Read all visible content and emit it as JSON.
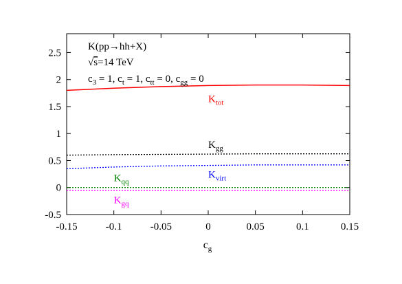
{
  "chart_data": {
    "type": "line",
    "xlabel": "c",
    "xlabel_sub": "g",
    "xlim": [
      -0.15,
      0.15
    ],
    "ylim": [
      -0.5,
      2.85
    ],
    "x_ticks": [
      -0.15,
      -0.1,
      -0.05,
      0,
      0.05,
      0.1,
      0.15
    ],
    "x_tick_labels": [
      "-0.15",
      "-0.1",
      "-0.05",
      "0",
      "0.05",
      "0.1",
      "0.15"
    ],
    "y_ticks": [
      -0.5,
      0,
      0.5,
      1,
      1.5,
      2,
      2.5
    ],
    "y_tick_labels": [
      "-0.5",
      "0",
      "0.5",
      "1",
      "1.5",
      "2",
      "2.5"
    ],
    "grid": false,
    "annotations": {
      "process": "K(pp→hh+X)",
      "energy_sqrt": "√",
      "energy": "s=14 TeV",
      "couplings": [
        {
          "base": "c",
          "sub": "3",
          "rest": " = 1, "
        },
        {
          "base": "c",
          "sub": "t",
          "rest": " = 1, "
        },
        {
          "base": "c",
          "sub": "tt",
          "rest": " = 0, "
        },
        {
          "base": "c",
          "sub": "gg",
          "rest": " = 0"
        }
      ]
    },
    "x": [
      -0.15,
      -0.1,
      -0.05,
      0,
      0.05,
      0.1,
      0.15
    ],
    "series": [
      {
        "name": "K",
        "sub": "tot",
        "color": "#ff0000",
        "dash": "solid",
        "values": [
          1.8,
          1.84,
          1.87,
          1.89,
          1.9,
          1.9,
          1.89
        ]
      },
      {
        "name": "K",
        "sub": "gg",
        "color": "#000000",
        "dash": "dotted",
        "values": [
          0.6,
          0.61,
          0.615,
          0.62,
          0.625,
          0.625,
          0.625
        ]
      },
      {
        "name": "K",
        "sub": "virt",
        "color": "#0000ff",
        "dash": "dotted",
        "values": [
          0.35,
          0.38,
          0.4,
          0.41,
          0.42,
          0.42,
          0.42
        ]
      },
      {
        "name": "K",
        "sub": "qq",
        "color": "#008000",
        "dash": "dotted",
        "values": [
          0.0,
          0.0,
          0.0,
          0.0,
          0.0,
          0.0,
          0.0
        ]
      },
      {
        "name": "K",
        "sub": "gq",
        "color": "#ff00ff",
        "dash": "dotted",
        "values": [
          -0.05,
          -0.05,
          -0.05,
          -0.05,
          -0.05,
          -0.05,
          -0.05
        ]
      }
    ]
  }
}
